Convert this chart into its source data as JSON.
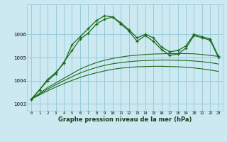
{
  "title": "Graphe pression niveau de la mer (hPa)",
  "bg_color": "#cce8f0",
  "grid_color": "#99ccdd",
  "line_color": "#1a6b1a",
  "xlim": [
    -0.5,
    23.5
  ],
  "ylim": [
    1002.7,
    1007.3
  ],
  "yticks": [
    1003,
    1004,
    1005,
    1006
  ],
  "xticks": [
    0,
    1,
    2,
    3,
    4,
    5,
    6,
    7,
    8,
    9,
    10,
    11,
    12,
    13,
    14,
    15,
    16,
    17,
    18,
    19,
    20,
    21,
    22,
    23
  ],
  "series_main": [
    1003.2,
    1003.6,
    1004.0,
    1004.3,
    1004.8,
    1005.3,
    1005.8,
    1006.05,
    1006.45,
    1006.65,
    1006.75,
    1006.5,
    1006.2,
    1005.85,
    1006.0,
    1005.85,
    1005.45,
    1005.25,
    1005.3,
    1005.5,
    1006.0,
    1005.9,
    1005.8,
    1005.05
  ],
  "series_line1": [
    1003.2,
    1003.6,
    1004.05,
    1004.35,
    1004.75,
    1005.55,
    1005.9,
    1006.25,
    1006.6,
    1006.8,
    1006.75,
    1006.45,
    1006.15,
    1005.7,
    1005.95,
    1005.7,
    1005.35,
    1005.1,
    1005.15,
    1005.4,
    1005.95,
    1005.85,
    1005.75,
    1005.0
  ],
  "series_smooth1": [
    1003.2,
    1003.45,
    1003.7,
    1003.9,
    1004.1,
    1004.3,
    1004.5,
    1004.65,
    1004.78,
    1004.88,
    1004.96,
    1005.02,
    1005.07,
    1005.1,
    1005.13,
    1005.15,
    1005.16,
    1005.17,
    1005.17,
    1005.17,
    1005.16,
    1005.13,
    1005.09,
    1005.05
  ],
  "series_smooth2": [
    1003.2,
    1003.42,
    1003.63,
    1003.82,
    1004.0,
    1004.17,
    1004.33,
    1004.46,
    1004.57,
    1004.66,
    1004.73,
    1004.78,
    1004.82,
    1004.85,
    1004.87,
    1004.88,
    1004.89,
    1004.89,
    1004.88,
    1004.87,
    1004.85,
    1004.82,
    1004.78,
    1004.72
  ],
  "series_smooth3": [
    1003.2,
    1003.38,
    1003.56,
    1003.72,
    1003.87,
    1004.01,
    1004.14,
    1004.25,
    1004.34,
    1004.42,
    1004.49,
    1004.54,
    1004.57,
    1004.6,
    1004.61,
    1004.62,
    1004.62,
    1004.61,
    1004.6,
    1004.58,
    1004.55,
    1004.51,
    1004.46,
    1004.4
  ]
}
